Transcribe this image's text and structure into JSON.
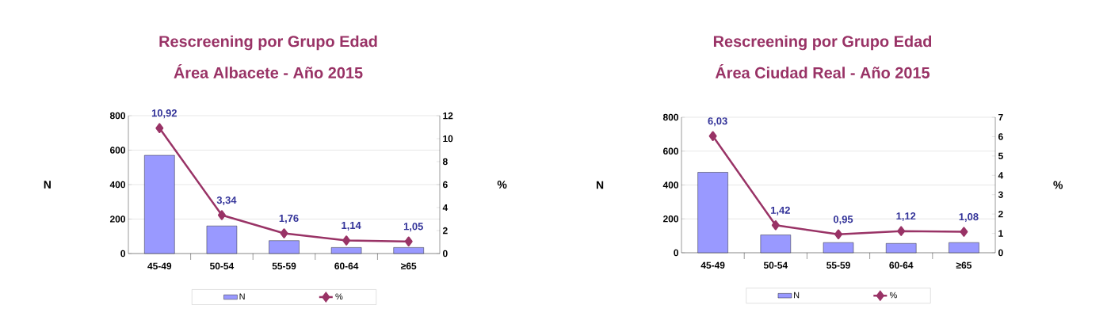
{
  "chart_data": [
    {
      "type": "bar",
      "title": "Rescreening por Grupo Edad",
      "subtitle": "Área Albacete - Año 2015",
      "ylabel": "N",
      "y2label": "%",
      "categories": [
        "45-49",
        "50-54",
        "55-59",
        "60-64",
        "≥65"
      ],
      "series": [
        {
          "name": "N",
          "color": "#9999ff",
          "values": [
            570,
            160,
            75,
            35,
            35
          ]
        },
        {
          "name": "%",
          "type": "line",
          "axis": "y2",
          "color": "#993366",
          "marker": "diamond",
          "values": [
            10.92,
            3.34,
            1.76,
            1.14,
            1.05
          ],
          "value_labels": [
            "10,92",
            "3,34",
            "1,76",
            "1,14",
            "1,05"
          ]
        }
      ],
      "ylim": [
        0,
        800
      ],
      "yticks": [
        0,
        200,
        400,
        600,
        800
      ],
      "y2lim": [
        0,
        12
      ],
      "y2ticks": [
        0,
        2,
        4,
        6,
        8,
        10,
        12
      ],
      "grid": "y",
      "legend": "bottom"
    },
    {
      "type": "bar",
      "title": "Rescreening por Grupo Edad",
      "subtitle": "Área Ciudad Real - Año 2015",
      "ylabel": "N",
      "y2label": "%",
      "categories": [
        "45-49",
        "50-54",
        "55-59",
        "60-64",
        "≥65"
      ],
      "series": [
        {
          "name": "N",
          "color": "#9999ff",
          "values": [
            475,
            105,
            60,
            55,
            60
          ]
        },
        {
          "name": "%",
          "type": "line",
          "axis": "y2",
          "color": "#993366",
          "marker": "diamond",
          "values": [
            6.03,
            1.42,
            0.95,
            1.12,
            1.08
          ],
          "value_labels": [
            "6,03",
            "1,42",
            "0,95",
            "1,12",
            "1,08"
          ]
        }
      ],
      "ylim": [
        0,
        800
      ],
      "yticks": [
        0,
        200,
        400,
        600,
        800
      ],
      "y2lim": [
        0,
        7
      ],
      "y2ticks": [
        0,
        1,
        2,
        3,
        4,
        5,
        6,
        7
      ],
      "grid": "y",
      "legend": "bottom"
    }
  ]
}
